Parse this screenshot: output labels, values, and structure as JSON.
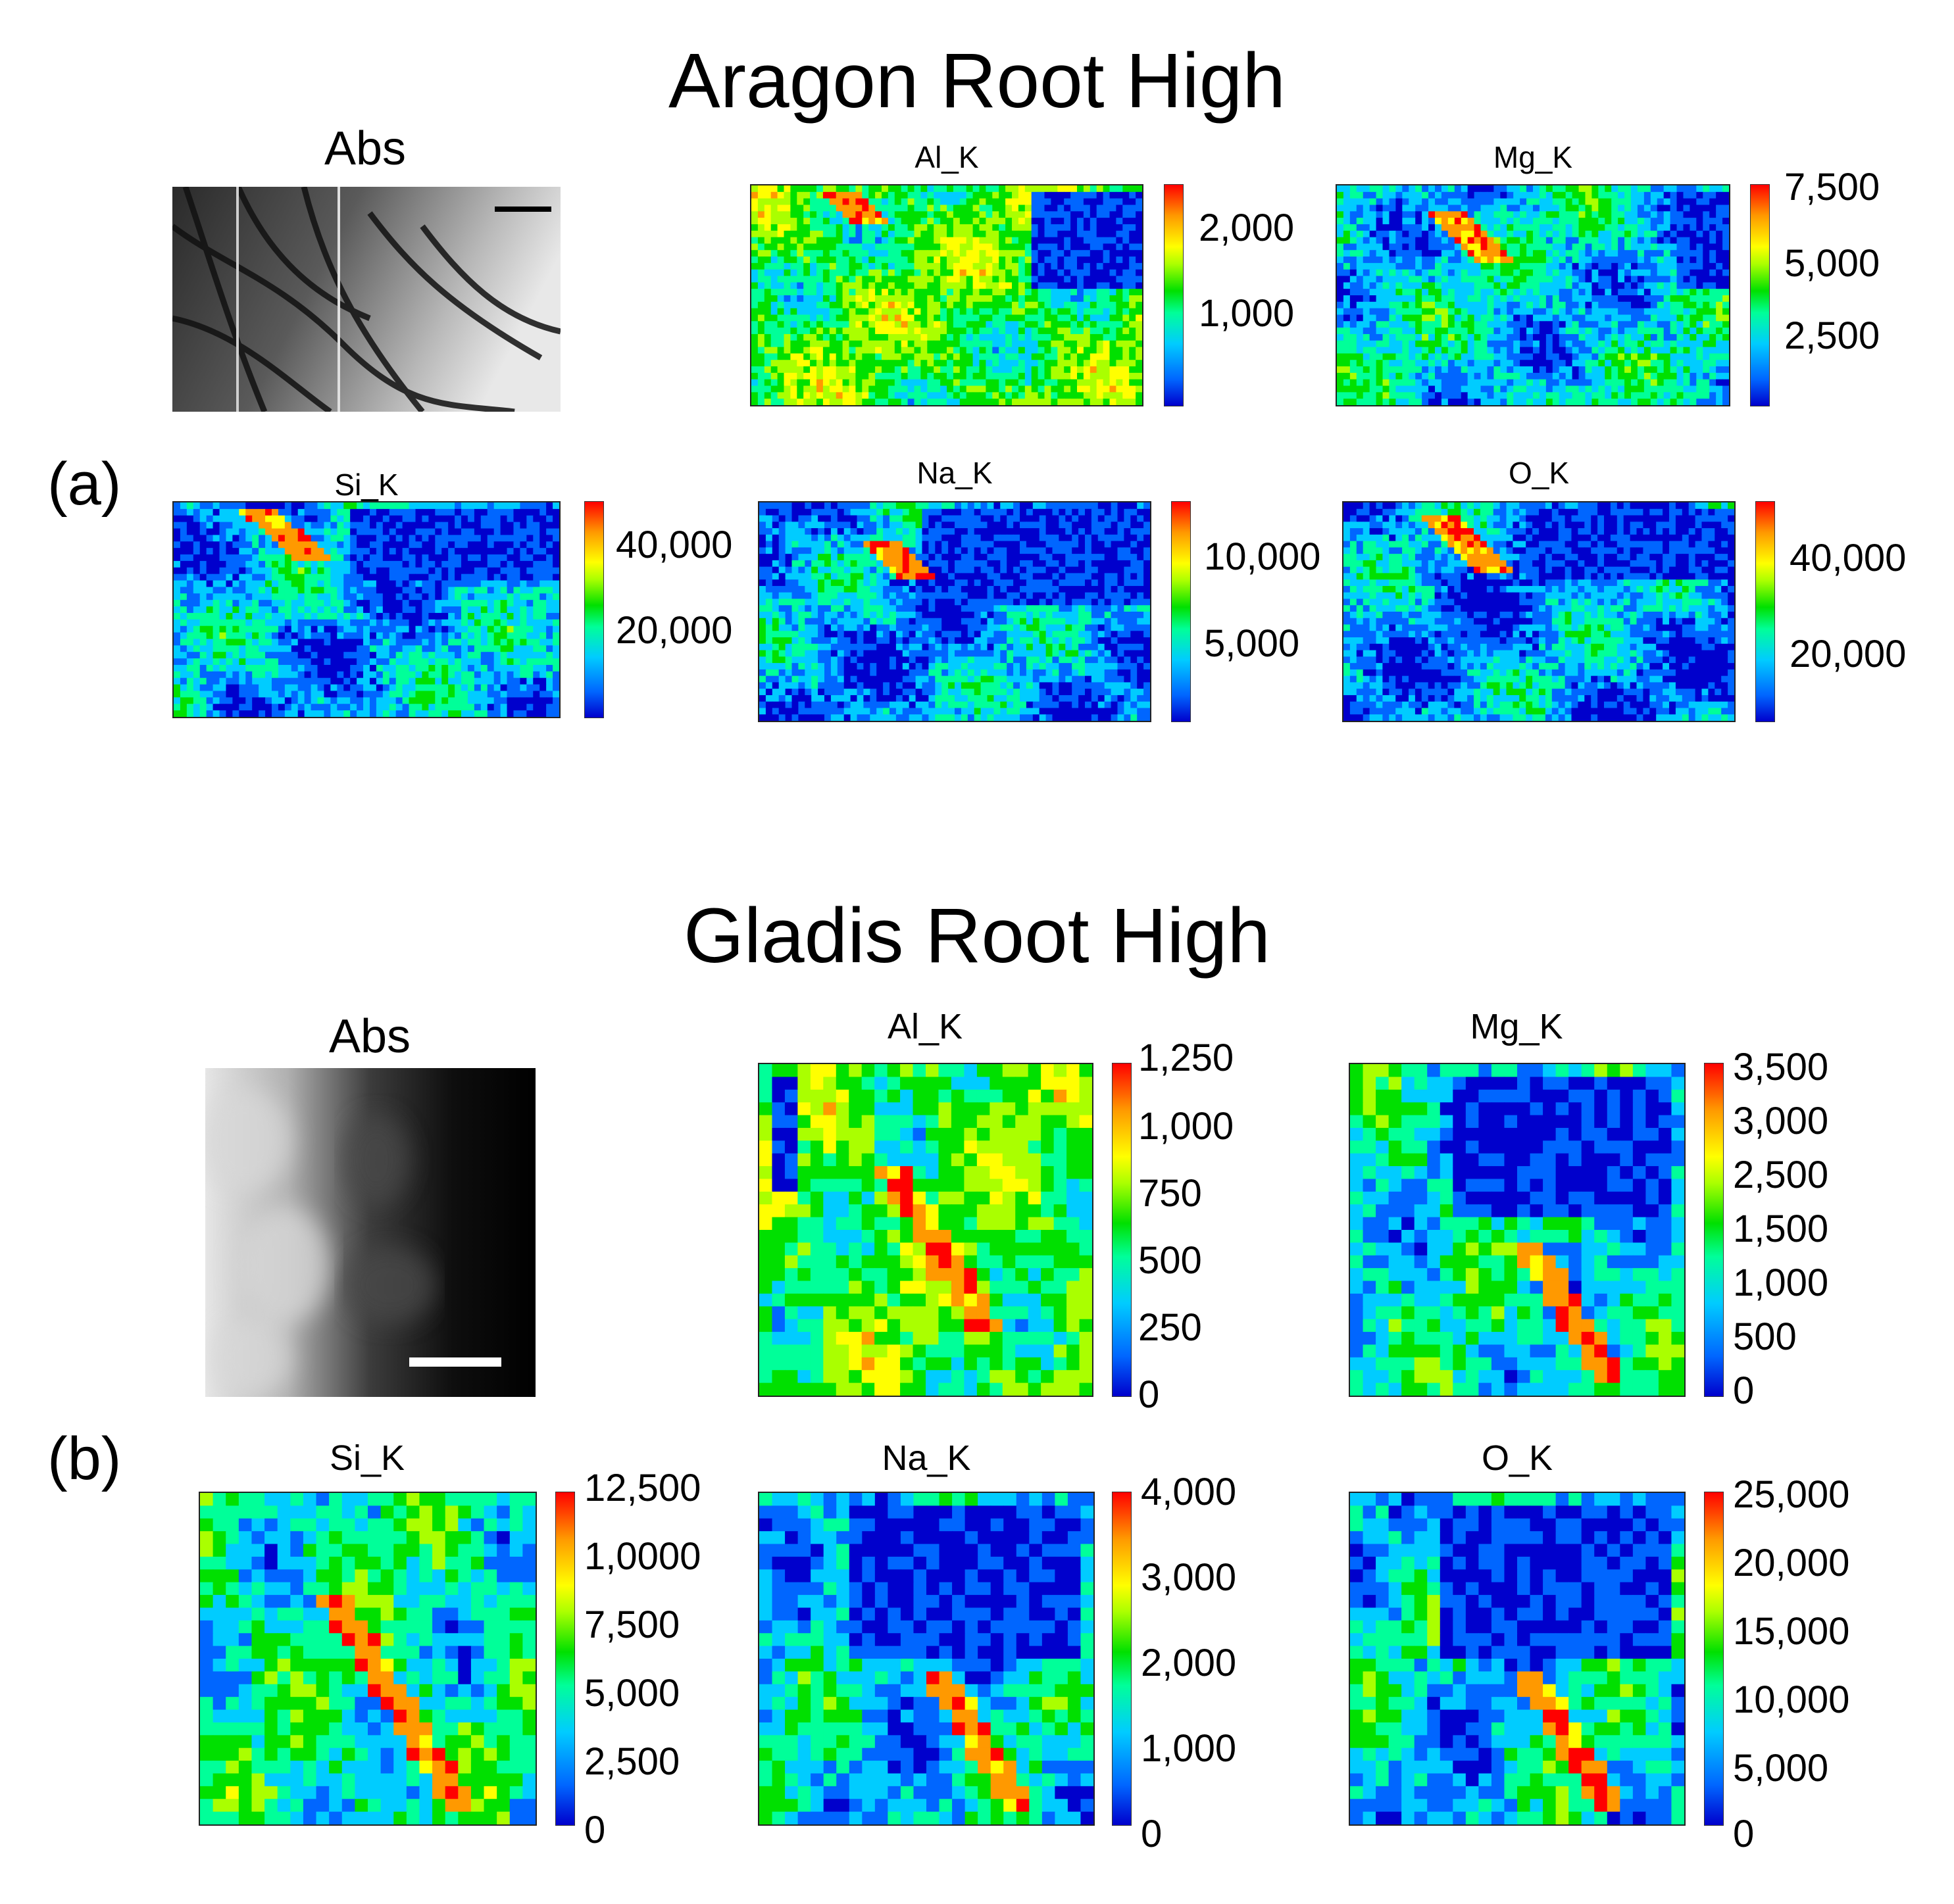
{
  "figure": {
    "panel_a": {
      "label": "(a)",
      "title": "Aragon Root High",
      "abs": {
        "title": "Abs"
      },
      "maps": [
        {
          "id": "al",
          "title": "Al_K",
          "ticks": [
            "2,000",
            "1,000"
          ],
          "tick_values": [
            2000,
            1000
          ],
          "scale_min": 0,
          "scale_max": 2500,
          "pattern": "fill"
        },
        {
          "id": "mg",
          "title": "Mg_K",
          "ticks": [
            "7,500",
            "5,000",
            "2,500"
          ],
          "tick_values": [
            7500,
            5000,
            2500
          ],
          "scale_min": 0,
          "scale_max": 7500,
          "pattern": "cells"
        },
        {
          "id": "si",
          "title": "Si_K",
          "ticks": [
            "40,000",
            "20,000"
          ],
          "tick_values": [
            40000,
            20000
          ],
          "scale_min": 0,
          "scale_max": 50000,
          "pattern": "cells"
        },
        {
          "id": "na",
          "title": "Na_K",
          "ticks": [
            "10,000",
            "5,000"
          ],
          "tick_values": [
            10000,
            5000
          ],
          "scale_min": 0,
          "scale_max": 13000,
          "pattern": "cells"
        },
        {
          "id": "o",
          "title": "O_K",
          "ticks": [
            "40,000",
            "20,000"
          ],
          "tick_values": [
            40000,
            20000
          ],
          "scale_min": 0,
          "scale_max": 50000,
          "pattern": "cells"
        }
      ]
    },
    "panel_b": {
      "label": "(b)",
      "title": "Gladis Root High",
      "abs": {
        "title": "Abs"
      },
      "maps": [
        {
          "id": "al",
          "title": "Al_K",
          "ticks": [
            "1,250",
            "1,000",
            "750",
            "500",
            "250",
            "0"
          ],
          "scale_min": 0,
          "scale_max": 1250,
          "pattern": "pix_al"
        },
        {
          "id": "mg",
          "title": "Mg_K",
          "ticks": [
            "3,500",
            "3,000",
            "2,500",
            "1,500",
            "1,000",
            "500",
            "0"
          ],
          "scale_min": 0,
          "scale_max": 3500,
          "pattern": "pix_mg"
        },
        {
          "id": "si",
          "title": "Si_K",
          "ticks": [
            "12,500",
            "1,0000",
            "7,500",
            "5,000",
            "2,500",
            "0"
          ],
          "scale_min": 0,
          "scale_max": 12500,
          "pattern": "pix_si"
        },
        {
          "id": "na",
          "title": "Na_K",
          "ticks": [
            "4,000",
            "3,000",
            "2,000",
            "1,000",
            "0"
          ],
          "scale_min": 0,
          "scale_max": 4000,
          "pattern": "pix_na"
        },
        {
          "id": "o",
          "title": "O_K",
          "ticks": [
            "25,000",
            "20,000",
            "15,000",
            "10,000",
            "5,000",
            "0"
          ],
          "scale_min": 0,
          "scale_max": 25000,
          "pattern": "pix_o"
        }
      ]
    },
    "colormap": [
      "#0000cc",
      "#0066ff",
      "#00ccff",
      "#00ff99",
      "#00e000",
      "#aaff00",
      "#ffff00",
      "#ff9900",
      "#ff0000"
    ]
  }
}
